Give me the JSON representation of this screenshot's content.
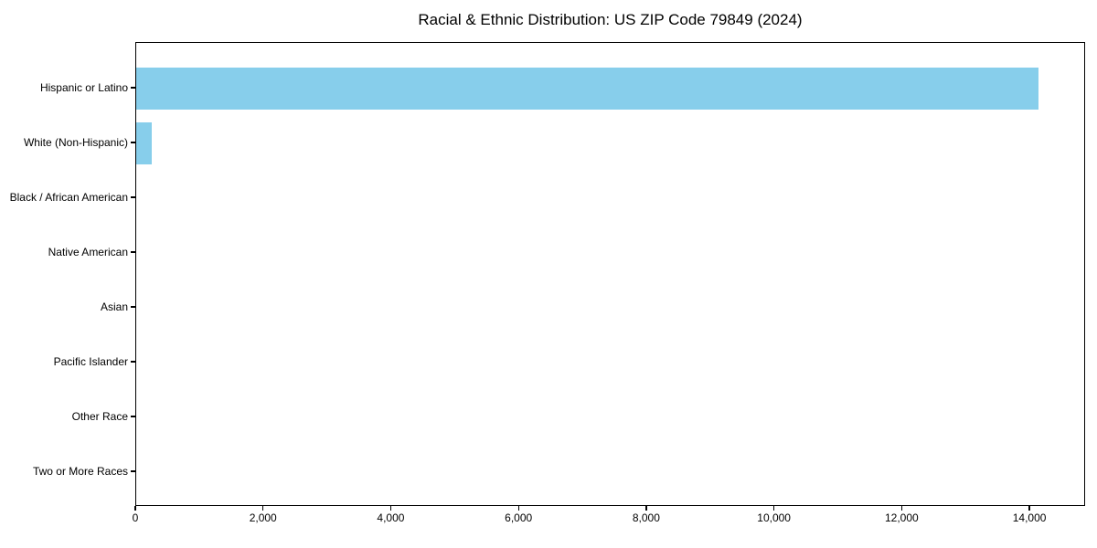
{
  "title": "Racial & Ethnic Distribution: US ZIP Code 79849 (2024)",
  "colors": {
    "bar": "#87CEEB",
    "axis": "#000000",
    "text": "#000000",
    "background": "#ffffff"
  },
  "chart_data": {
    "type": "bar",
    "orientation": "horizontal",
    "title": "Racial & Ethnic Distribution: US ZIP Code 79849 (2024)",
    "categories": [
      "Hispanic or Latino",
      "White (Non-Hispanic)",
      "Black / African American",
      "Native American",
      "Asian",
      "Pacific Islander",
      "Other Race",
      "Two or More Races"
    ],
    "values": [
      14130,
      250,
      0,
      0,
      0,
      0,
      0,
      0
    ],
    "xlabel": "",
    "ylabel": "",
    "xlim": [
      0,
      14872
    ],
    "x_ticks": [
      0,
      2000,
      4000,
      6000,
      8000,
      10000,
      12000,
      14000
    ],
    "x_tick_labels": [
      "0",
      "2,000",
      "4,000",
      "6,000",
      "8,000",
      "10,000",
      "12,000",
      "14,000"
    ],
    "grid": false,
    "legend": null,
    "bar_color": "#87CEEB"
  }
}
